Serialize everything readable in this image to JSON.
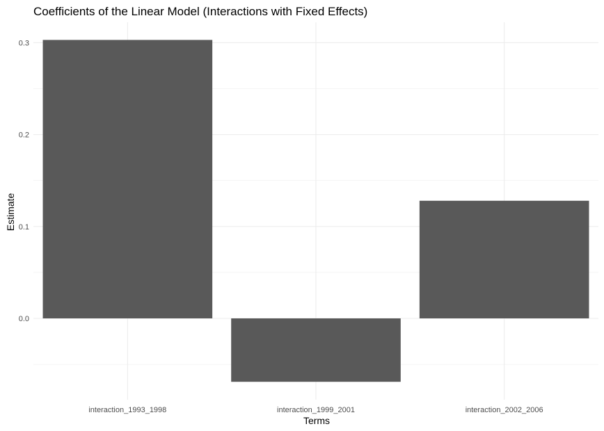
{
  "chart_data": {
    "type": "bar",
    "title": "Coefficients of the Linear Model (Interactions with Fixed Effects)",
    "xlabel": "Terms",
    "ylabel": "Estimate",
    "categories": [
      "interaction_1993_1998",
      "interaction_1999_2001",
      "interaction_2002_2006"
    ],
    "values": [
      0.303,
      -0.069,
      0.128
    ],
    "ylim": [
      -0.09,
      0.32
    ],
    "yticks": [
      0.0,
      0.1,
      0.2,
      0.3
    ],
    "ytick_labels": [
      "0.0",
      "0.1",
      "0.2",
      "0.3"
    ],
    "grid": true,
    "bar_color": "#595959"
  }
}
